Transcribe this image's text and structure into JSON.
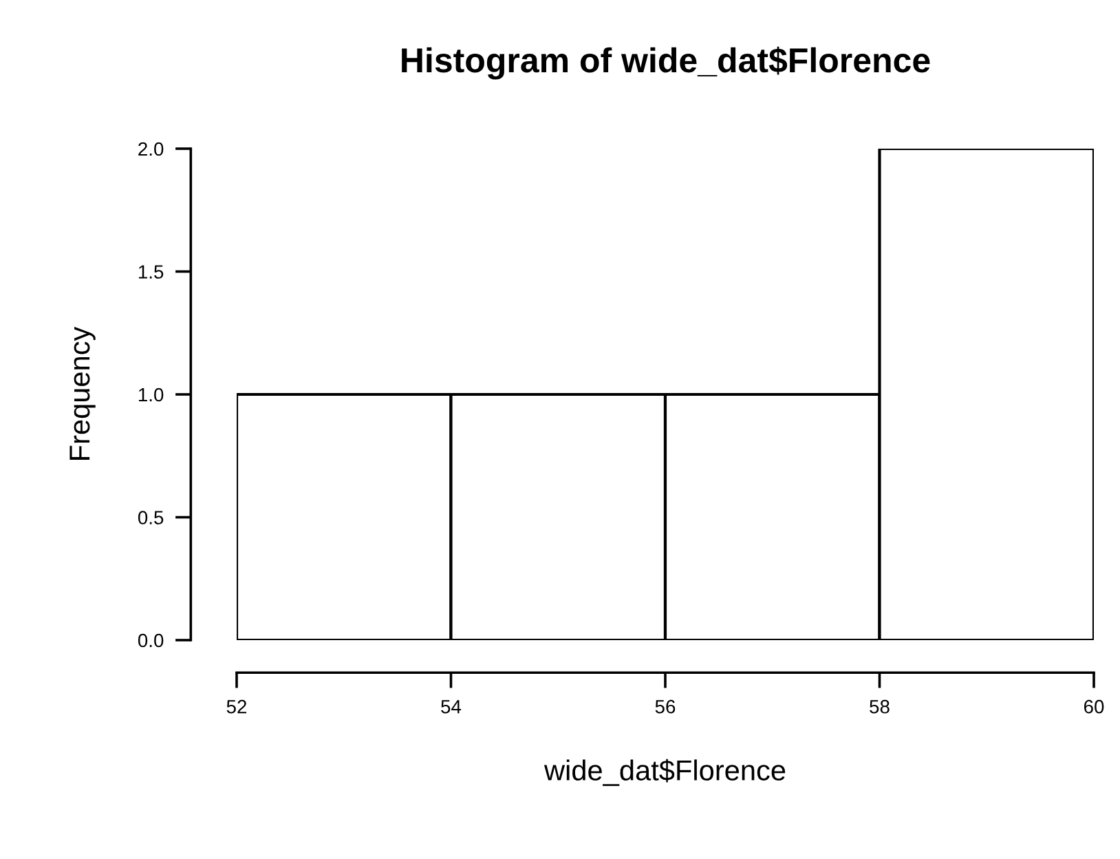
{
  "chart_data": {
    "type": "histogram",
    "title": "Histogram of wide_dat$Florence",
    "xlabel": "wide_dat$Florence",
    "ylabel": "Frequency",
    "bins": [
      52,
      54,
      56,
      58,
      60
    ],
    "values": [
      1,
      1,
      1,
      2
    ],
    "color": "#ffffff",
    "xlim": [
      52,
      60
    ],
    "xticks": [
      52,
      54,
      56,
      58,
      60
    ],
    "ylim": [
      0,
      2
    ],
    "yticks": [
      {
        "value": 0,
        "label": "0.0"
      },
      {
        "value": 0.5,
        "label": "0.5"
      },
      {
        "value": 1,
        "label": "1.0"
      },
      {
        "value": 1.5,
        "label": "1.5"
      },
      {
        "value": 2,
        "label": "2.0"
      }
    ],
    "grid": false
  }
}
